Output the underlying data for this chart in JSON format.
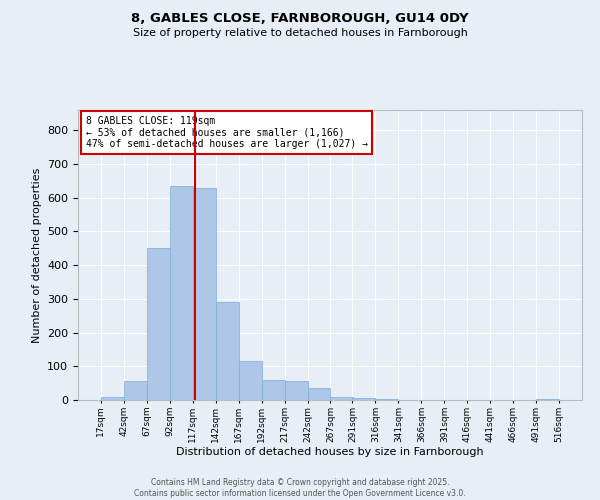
{
  "title1": "8, GABLES CLOSE, FARNBOROUGH, GU14 0DY",
  "title2": "Size of property relative to detached houses in Farnborough",
  "xlabel": "Distribution of detached houses by size in Farnborough",
  "ylabel": "Number of detached properties",
  "bin_edges": [
    17,
    42,
    67,
    92,
    117,
    142,
    167,
    192,
    217,
    242,
    267,
    291,
    316,
    341,
    366,
    391,
    416,
    441,
    466,
    491,
    516
  ],
  "bar_heights": [
    10,
    55,
    450,
    635,
    630,
    290,
    115,
    60,
    55,
    35,
    10,
    5,
    2,
    0,
    0,
    0,
    0,
    0,
    0,
    2
  ],
  "bar_color": "#aec6e8",
  "bar_edge_color": "#7aafd4",
  "vline_x": 119,
  "vline_color": "#cc0000",
  "annotation_box_text": "8 GABLES CLOSE: 119sqm\n← 53% of detached houses are smaller (1,166)\n47% of semi-detached houses are larger (1,027) →",
  "bg_color": "#e8eef5",
  "plot_bg_color": "#e8eef5",
  "grid_color": "#ffffff",
  "footer_text": "Contains HM Land Registry data © Crown copyright and database right 2025.\nContains public sector information licensed under the Open Government Licence v3.0.",
  "ylim": [
    0,
    860
  ],
  "yticks": [
    0,
    100,
    200,
    300,
    400,
    500,
    600,
    700,
    800
  ]
}
